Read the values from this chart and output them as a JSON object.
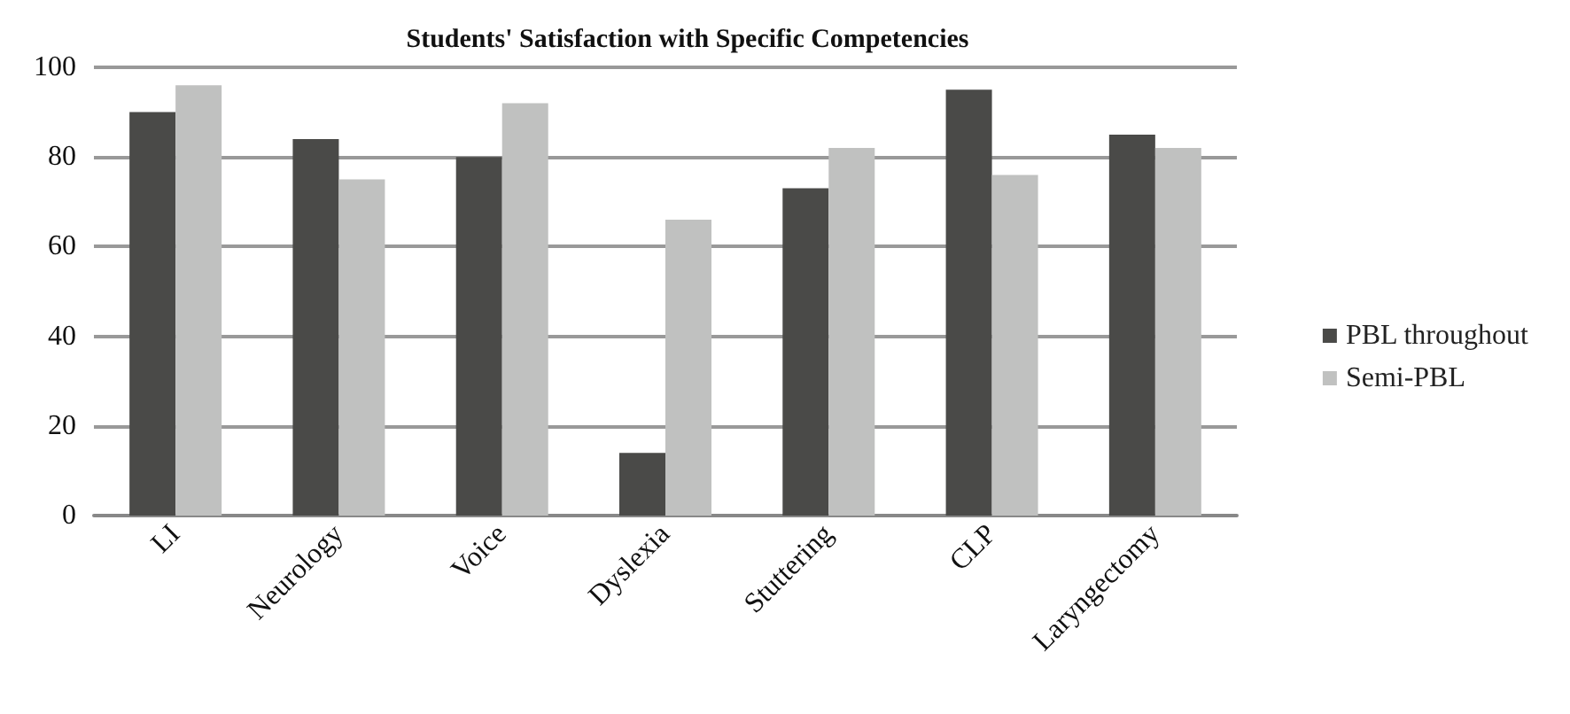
{
  "chart_data": {
    "type": "bar",
    "title": "Students' Satisfaction with Specific Competencies",
    "categories": [
      "LI",
      "Neurology",
      "Voice",
      "Dyslexia",
      "Stuttering",
      "CLP",
      "Laryngectomy"
    ],
    "series": [
      {
        "name": "PBL throughout",
        "color": "#4a4a48",
        "values": [
          90,
          84,
          80,
          14,
          73,
          95,
          85
        ]
      },
      {
        "name": "Semi-PBL",
        "color": "#c0c1c0",
        "values": [
          96,
          75,
          92,
          66,
          82,
          76,
          82
        ]
      }
    ],
    "ylim": [
      0,
      100
    ],
    "yticks": [
      0,
      20,
      40,
      60,
      80,
      100
    ],
    "grid": "y",
    "legend": "right"
  }
}
